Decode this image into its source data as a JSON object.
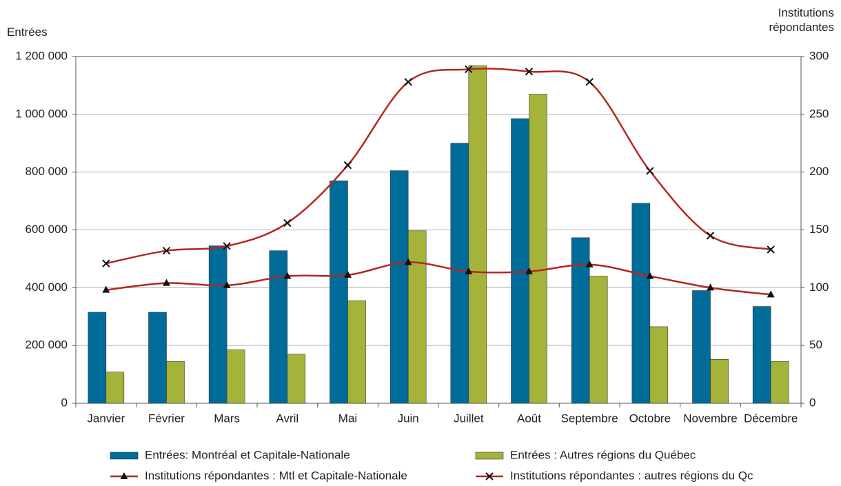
{
  "chart_data": {
    "type": "bar",
    "ylabel": "Entrées",
    "y2label": "Institutions répondantes",
    "categories": [
      "Janvier",
      "Février",
      "Mars",
      "Avril",
      "Mai",
      "Juin",
      "Juillet",
      "Août",
      "Septembre",
      "Octobre",
      "Novembre",
      "Décembre"
    ],
    "series": [
      {
        "name": "Entrées: Montréal et Capitale-Nationale",
        "type": "bar",
        "color": "#006c9a",
        "values": [
          315000,
          315000,
          545000,
          528000,
          770000,
          805000,
          900000,
          985000,
          573000,
          692000,
          390000,
          335000
        ]
      },
      {
        "name": "Entrées : Autres régions du Québec",
        "type": "bar",
        "color": "#a5b33a",
        "values": [
          108000,
          145000,
          185000,
          170000,
          355000,
          597000,
          1168000,
          1070000,
          440000,
          265000,
          152000,
          145000
        ]
      },
      {
        "name": "Institutions répondantes : Mtl et Capitale-Nationale",
        "type": "line",
        "axis": "y2",
        "marker": "triangle",
        "color": "#b5261e",
        "values": [
          98,
          104,
          102,
          110,
          111,
          122,
          114,
          114,
          120,
          110,
          100,
          94
        ]
      },
      {
        "name": "Institutions répondantes : autres régions du Qc",
        "type": "line",
        "axis": "y2",
        "marker": "x",
        "color": "#b5261e",
        "values": [
          121,
          132,
          136,
          156,
          206,
          278,
          289,
          287,
          278,
          201,
          145,
          133
        ]
      }
    ],
    "ylim": [
      0,
      1200000
    ],
    "yticks": [
      0,
      {
        "value": 200000,
        "label": "200 000"
      },
      {
        "value": 400000,
        "label": "400 000"
      },
      {
        "value": 600000,
        "label": "600 000"
      },
      {
        "value": 800000,
        "label": "800 000"
      },
      {
        "value": 1000000,
        "label": "1 000 000"
      },
      {
        "value": 1200000,
        "label": "1 200 000"
      }
    ],
    "y2lim": [
      0,
      300
    ],
    "y2ticks": [
      0,
      50,
      100,
      150,
      200,
      250,
      300
    ],
    "grid": true
  }
}
